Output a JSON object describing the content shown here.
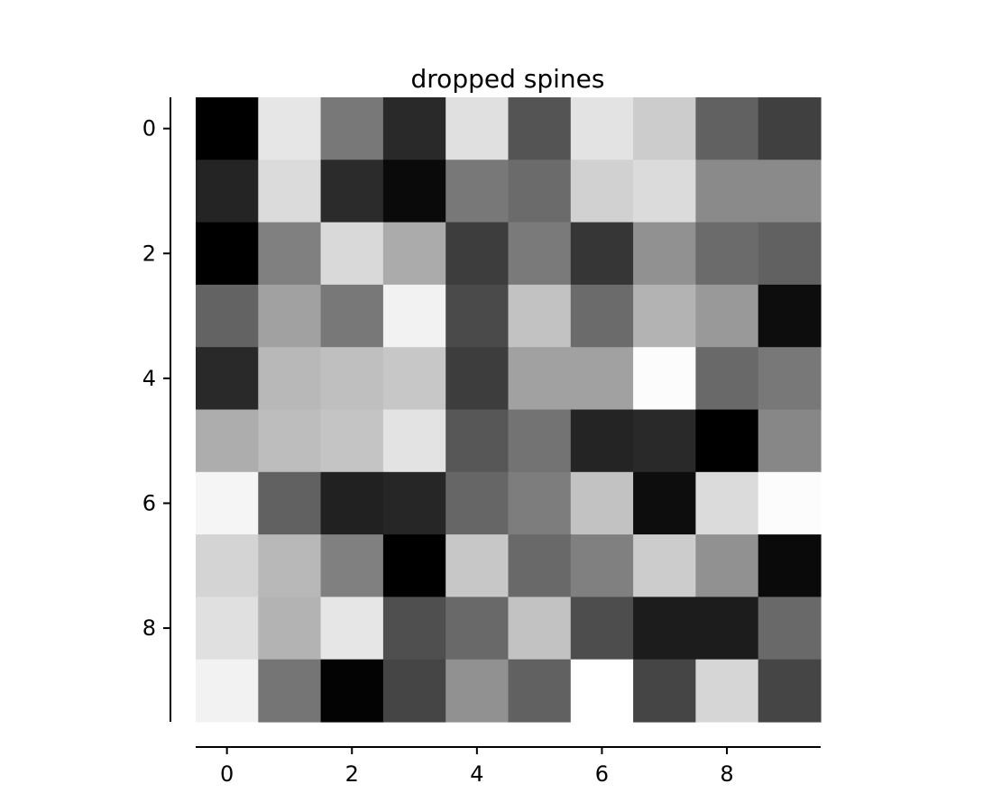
{
  "chart_data": {
    "type": "heatmap",
    "title": "dropped spines",
    "colormap": "gray",
    "xlim": [
      -0.5,
      9.5
    ],
    "ylim": [
      -0.5,
      9.5
    ],
    "y_inverted": true,
    "xticks": [
      0,
      2,
      4,
      6,
      8
    ],
    "yticks": [
      0,
      2,
      4,
      6,
      8
    ],
    "xtick_labels": [
      "0",
      "2",
      "4",
      "6",
      "8"
    ],
    "ytick_labels": [
      "0",
      "2",
      "4",
      "6",
      "8"
    ],
    "rows": 10,
    "cols": 10,
    "values": [
      [
        0.0,
        0.9,
        0.47,
        0.16,
        0.88,
        0.33,
        0.89,
        0.8,
        0.38,
        0.25
      ],
      [
        0.14,
        0.86,
        0.17,
        0.04,
        0.47,
        0.42,
        0.82,
        0.86,
        0.54,
        0.54
      ],
      [
        0.0,
        0.5,
        0.85,
        0.67,
        0.24,
        0.48,
        0.21,
        0.57,
        0.42,
        0.38
      ],
      [
        0.39,
        0.63,
        0.47,
        0.95,
        0.29,
        0.76,
        0.42,
        0.7,
        0.6,
        0.05
      ],
      [
        0.16,
        0.72,
        0.75,
        0.78,
        0.24,
        0.63,
        0.63,
        0.99,
        0.41,
        0.47
      ],
      [
        0.68,
        0.74,
        0.77,
        0.89,
        0.34,
        0.45,
        0.14,
        0.16,
        0.0,
        0.53
      ],
      [
        0.96,
        0.38,
        0.13,
        0.15,
        0.4,
        0.49,
        0.76,
        0.05,
        0.86,
        0.99
      ],
      [
        0.83,
        0.72,
        0.5,
        0.0,
        0.78,
        0.41,
        0.5,
        0.8,
        0.57,
        0.04
      ],
      [
        0.88,
        0.7,
        0.9,
        0.31,
        0.41,
        0.76,
        0.3,
        0.11,
        0.11,
        0.41
      ],
      [
        0.95,
        0.46,
        0.01,
        0.27,
        0.57,
        0.38,
        1.0,
        0.27,
        0.84,
        0.27
      ]
    ]
  }
}
